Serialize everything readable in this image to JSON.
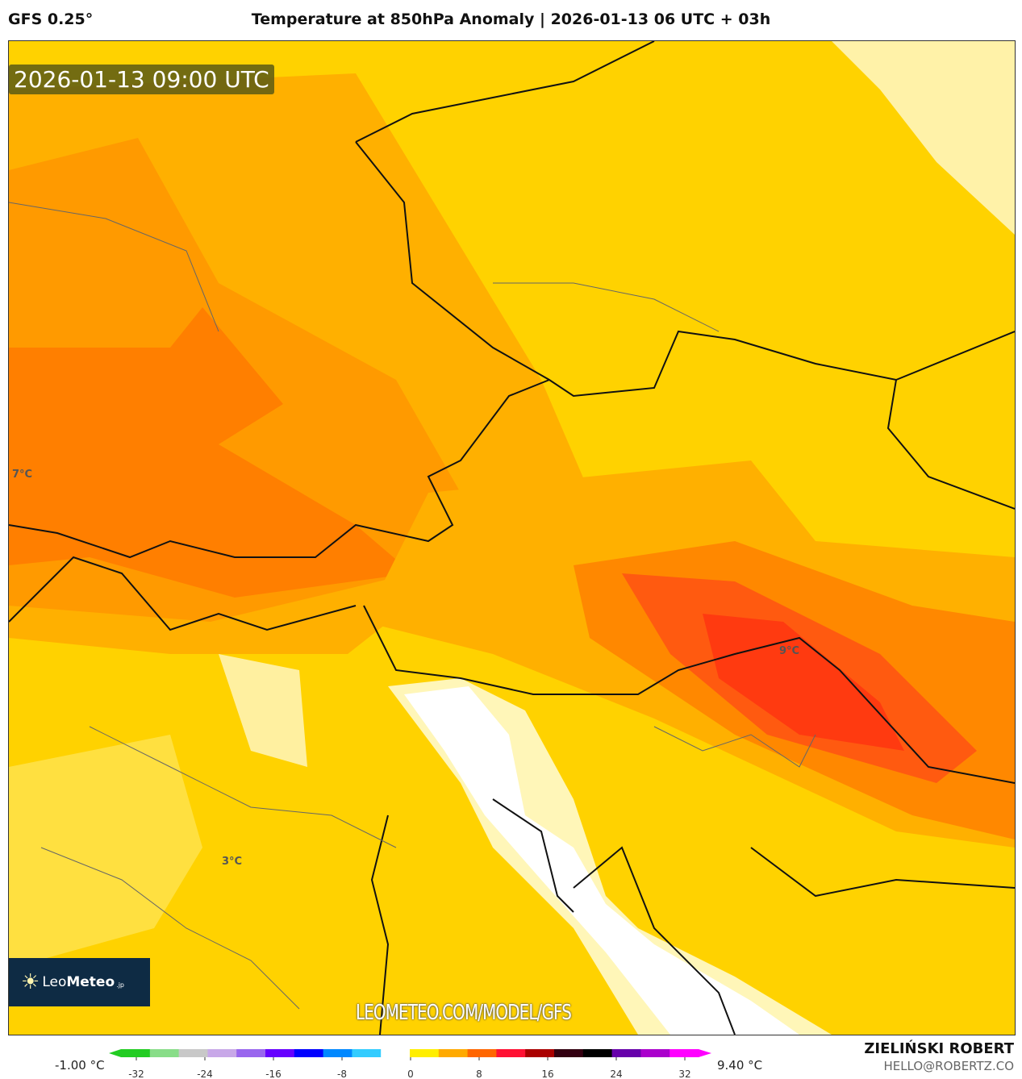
{
  "header": {
    "model": "GFS 0.25°",
    "title": "Temperature at 850hPa Anomaly | 2026-01-13 06 UTC + 03h"
  },
  "map": {
    "valid_time": "2026-01-13 09:00 UTC",
    "labels": [
      "7°C",
      "3°C",
      "9°C"
    ],
    "watermark_url": "LEOMETEO.COM/MODEL/GFS"
  },
  "logo": {
    "text_light": "Leo",
    "text_bold": "Meteo",
    "suffix": ".jp",
    "icon": "sun-icon"
  },
  "colorbar": {
    "min_label": "-1.00 °C",
    "max_label": "9.40 °C",
    "ticks": [
      "-32",
      "-24",
      "-16",
      "-8",
      "0",
      "8",
      "16",
      "24",
      "32"
    ],
    "colors": [
      "#22cc22",
      "#88dd88",
      "#c8c8c8",
      "#c8a8e8",
      "#9966ee",
      "#6600ff",
      "#0000ff",
      "#0088ff",
      "#33ccff",
      "#ffffff",
      "#ffee00",
      "#ffaa00",
      "#ff6600",
      "#ff1133",
      "#aa0000",
      "#330011",
      "#000000",
      "#6600aa",
      "#aa00cc",
      "#ff00ff"
    ]
  },
  "credits": {
    "author": "ZIELIŃSKI ROBERT",
    "email": "HELLO@ROBERTZ.CO"
  }
}
